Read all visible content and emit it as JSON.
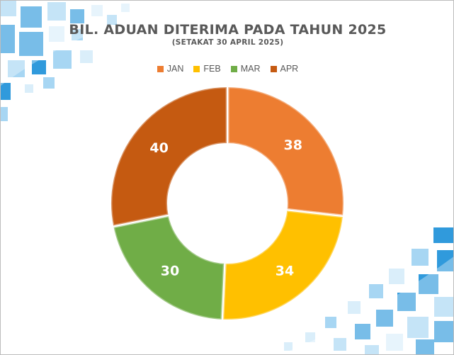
{
  "chart_data": {
    "type": "pie",
    "variant": "doughnut",
    "title": "BIL. ADUAN DITERIMA PADA TAHUN 2025",
    "subtitle": "(SETAKAT 30 APRIL 2025)",
    "categories": [
      "JAN",
      "FEB",
      "MAR",
      "APR"
    ],
    "values": [
      38,
      34,
      30,
      40
    ],
    "colors": [
      "#ED7D31",
      "#FFC000",
      "#70AD47",
      "#C55A11"
    ],
    "data_labels": [
      "38",
      "34",
      "30",
      "40"
    ],
    "legend_position": "top",
    "grid": false
  },
  "decor_colors": {
    "primary": "#1A8FD8",
    "light": "#9DD1F2",
    "pale": "#D6ECFA"
  }
}
